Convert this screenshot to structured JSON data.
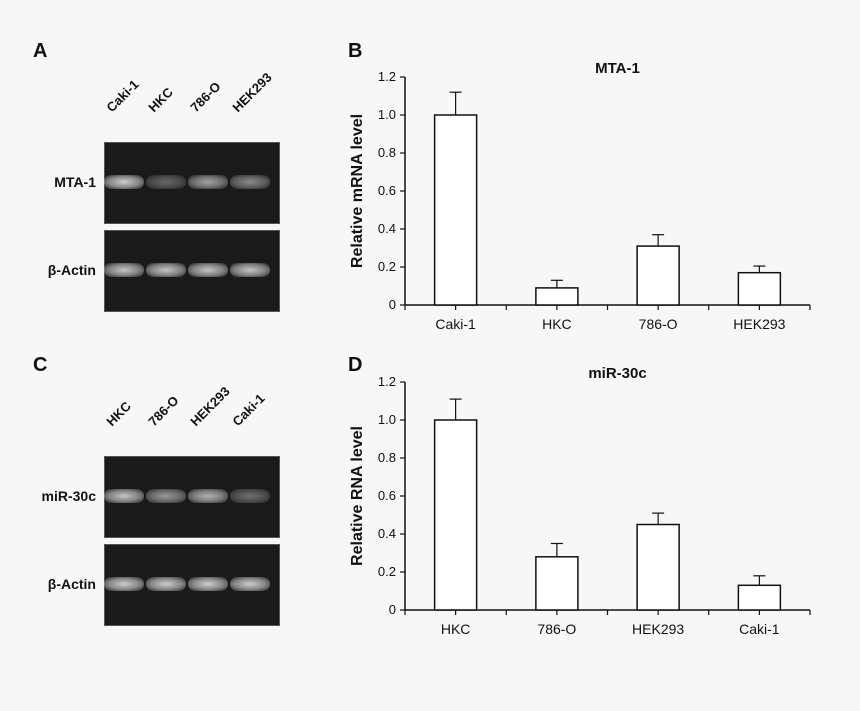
{
  "panels": {
    "a": "A",
    "b": "B",
    "c": "C",
    "d": "D"
  },
  "gel_a": {
    "lanes": [
      "Caki-1",
      "HKC",
      "786-O",
      "HEK293"
    ],
    "rows": [
      {
        "label": "MTA-1",
        "intensities": [
          0.85,
          0.25,
          0.6,
          0.45
        ]
      },
      {
        "label": "β-Actin",
        "intensities": [
          0.8,
          0.8,
          0.8,
          0.8
        ]
      }
    ]
  },
  "gel_c": {
    "lanes": [
      "HKC",
      "786-O",
      "HEK293",
      "Caki-1"
    ],
    "rows": [
      {
        "label": "miR-30c",
        "intensities": [
          0.8,
          0.55,
          0.7,
          0.3
        ]
      },
      {
        "label": "β-Actin",
        "intensities": [
          0.85,
          0.85,
          0.85,
          0.85
        ]
      }
    ]
  },
  "chart_data": [
    {
      "type": "bar",
      "title": "MTA-1",
      "xlabel": "",
      "ylabel": "Relative mRNA level",
      "categories": [
        "Caki-1",
        "HKC",
        "786-O",
        "HEK293"
      ],
      "values": [
        1.0,
        0.09,
        0.31,
        0.17
      ],
      "errors": [
        0.12,
        0.04,
        0.06,
        0.035
      ],
      "ylim": [
        0,
        1.2
      ],
      "yticks": [
        "0",
        "0.2",
        "0.4",
        "0.6",
        "0.8",
        "1.0",
        "1.2"
      ],
      "grid": false
    },
    {
      "type": "bar",
      "title": "miR-30c",
      "xlabel": "",
      "ylabel": "Relative RNA level",
      "categories": [
        "HKC",
        "786-O",
        "HEK293",
        "Caki-1"
      ],
      "values": [
        1.0,
        0.28,
        0.45,
        0.13
      ],
      "errors": [
        0.11,
        0.07,
        0.06,
        0.05
      ],
      "ylim": [
        0,
        1.2
      ],
      "yticks": [
        "0",
        "0.2",
        "0.4",
        "0.6",
        "0.8",
        "1.0",
        "1.2"
      ],
      "grid": false
    }
  ]
}
